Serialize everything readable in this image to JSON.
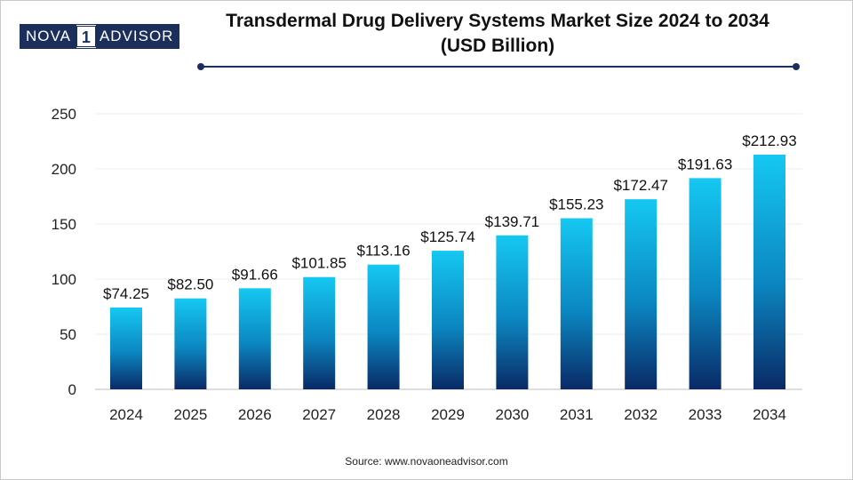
{
  "header": {
    "logo_left": "NOVA",
    "logo_mid": "1",
    "logo_right": "ADVISOR",
    "title_line1": "Transdermal Drug Delivery Systems Market Size 2024 to 2034",
    "title_line2": "(USD Billion)"
  },
  "footer": {
    "source": "Source: www.novaoneadvisor.com"
  },
  "colors": {
    "navy": "#1c2e5c",
    "bar_top": "#15c8f2",
    "bar_bottom": "#0a2a66"
  },
  "chart_data": {
    "type": "bar",
    "title": "Transdermal Drug Delivery Systems Market Size 2024 to 2034 (USD Billion)",
    "categories": [
      "2024",
      "2025",
      "2026",
      "2027",
      "2028",
      "2029",
      "2030",
      "2031",
      "2032",
      "2033",
      "2034"
    ],
    "values": [
      74.25,
      82.5,
      91.66,
      101.85,
      113.16,
      125.74,
      139.71,
      155.23,
      172.47,
      191.63,
      212.93
    ],
    "data_labels": [
      "$74.25",
      "$82.50",
      "$91.66",
      "$101.85",
      "$113.16",
      "$125.74",
      "$139.71",
      "$155.23",
      "$172.47",
      "$191.63",
      "$212.93"
    ],
    "yticks": [
      0,
      50,
      100,
      150,
      200,
      250
    ],
    "ylim": [
      0,
      250
    ],
    "xlabel": "",
    "ylabel": "",
    "grid": true,
    "legend": "none"
  }
}
